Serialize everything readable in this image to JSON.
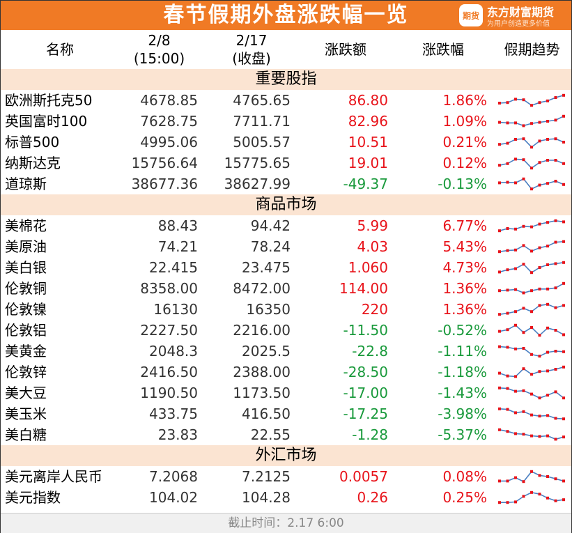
{
  "title": "春节假期外盘涨跌幅一览",
  "brand": {
    "logo_text": "期货",
    "name": "东方财富期货",
    "slogan": "为用户创造更多价值"
  },
  "header": {
    "name": "名称",
    "col1": [
      "2/8",
      "(15:00)"
    ],
    "col2": [
      "2/17",
      "(收盘)"
    ],
    "change": "涨跌额",
    "pct": "涨跌幅",
    "trend": "假期趋势"
  },
  "colors": {
    "up": "#e8141b",
    "down": "#1a9a3c",
    "accent": "#f07a25",
    "section_bg": "#fbe4d2"
  },
  "sections": [
    {
      "title": "重要股指",
      "rows": [
        {
          "name": "欧洲斯托克50",
          "v1": "4678.85",
          "v2": "4765.65",
          "change": "86.80",
          "pct": "1.86%",
          "dir": "up",
          "trend": [
            0.25,
            0.3,
            0.6,
            0.55,
            0.05,
            0.3,
            0.45,
            0.75,
            0.95
          ]
        },
        {
          "name": "英国富时100",
          "v1": "7628.75",
          "v2": "7711.71",
          "change": "82.96",
          "pct": "1.09%",
          "dir": "up",
          "trend": [
            0.4,
            0.35,
            0.35,
            0.1,
            0.3,
            0.4,
            0.5,
            0.6,
            0.95
          ]
        },
        {
          "name": "标普500",
          "v1": "4995.06",
          "v2": "5005.57",
          "change": "10.51",
          "pct": "0.21%",
          "dir": "up",
          "trend": [
            0.3,
            0.4,
            0.75,
            0.8,
            0.05,
            0.6,
            0.75,
            0.8,
            0.5
          ]
        },
        {
          "name": "纳斯达克",
          "v1": "15756.64",
          "v2": "15775.65",
          "change": "19.01",
          "pct": "0.12%",
          "dir": "up",
          "trend": [
            0.3,
            0.45,
            0.85,
            0.8,
            0.05,
            0.55,
            0.75,
            0.75,
            0.45
          ]
        },
        {
          "name": "道琼斯",
          "v1": "38677.36",
          "v2": "38627.99",
          "change": "-49.37",
          "pct": "-0.13%",
          "dir": "down",
          "trend": [
            0.6,
            0.65,
            0.6,
            0.95,
            0.05,
            0.4,
            0.55,
            0.75,
            0.45
          ]
        }
      ]
    },
    {
      "title": "商品市场",
      "rows": [
        {
          "name": "美棉花",
          "v1": "88.43",
          "v2": "94.42",
          "change": "5.99",
          "pct": "6.77%",
          "dir": "up",
          "trend": [
            0.05,
            0.25,
            0.2,
            0.45,
            0.4,
            0.65,
            0.8,
            0.95,
            0.85
          ]
        },
        {
          "name": "美原油",
          "v1": "74.21",
          "v2": "78.24",
          "change": "4.03",
          "pct": "5.43%",
          "dir": "up",
          "trend": [
            0.05,
            0.15,
            0.2,
            0.6,
            0.1,
            0.4,
            0.55,
            0.9,
            0.95
          ]
        },
        {
          "name": "美白银",
          "v1": "22.415",
          "v2": "23.475",
          "change": "1.060",
          "pct": "4.73%",
          "dir": "up",
          "trend": [
            0.1,
            0.3,
            0.4,
            0.8,
            0.05,
            0.5,
            0.75,
            0.85,
            0.95
          ]
        },
        {
          "name": "伦敦铜",
          "v1": "8358.00",
          "v2": "8472.00",
          "change": "114.00",
          "pct": "1.36%",
          "dir": "up",
          "trend": [
            0.3,
            0.35,
            0.4,
            0.1,
            0.3,
            0.45,
            0.45,
            0.55,
            0.95
          ]
        },
        {
          "name": "伦敦镍",
          "v1": "16130",
          "v2": "16350",
          "change": "220",
          "pct": "1.36%",
          "dir": "up",
          "trend": [
            0.05,
            0.15,
            0.3,
            0.6,
            0.3,
            0.85,
            0.95,
            0.65,
            0.85
          ]
        },
        {
          "name": "伦敦铝",
          "v1": "2227.50",
          "v2": "2216.00",
          "change": "-11.50",
          "pct": "-0.52%",
          "dir": "down",
          "trend": [
            0.4,
            0.55,
            0.95,
            0.3,
            0.75,
            0.05,
            0.7,
            0.5,
            0.1
          ]
        },
        {
          "name": "美黄金",
          "v1": "2048.3",
          "v2": "2025.5",
          "change": "-22.8",
          "pct": "-1.11%",
          "dir": "down",
          "trend": [
            0.9,
            0.85,
            0.7,
            0.75,
            0.2,
            0.05,
            0.4,
            0.5,
            0.45
          ]
        },
        {
          "name": "伦敦锌",
          "v1": "2416.50",
          "v2": "2388.00",
          "change": "-28.50",
          "pct": "-1.18%",
          "dir": "down",
          "trend": [
            0.4,
            0.15,
            0.1,
            0.8,
            0.3,
            0.55,
            0.6,
            0.75,
            0.95
          ]
        },
        {
          "name": "美大豆",
          "v1": "1190.50",
          "v2": "1173.50",
          "change": "-17.00",
          "pct": "-1.43%",
          "dir": "down",
          "trend": [
            0.95,
            0.9,
            0.65,
            0.7,
            0.4,
            0.05,
            0.3,
            0.6,
            0.05
          ]
        },
        {
          "name": "美玉米",
          "v1": "433.75",
          "v2": "416.50",
          "change": "-17.25",
          "pct": "-3.98%",
          "dir": "down",
          "trend": [
            0.95,
            0.9,
            0.6,
            0.7,
            0.4,
            0.3,
            0.35,
            0.1,
            0.05
          ]
        },
        {
          "name": "美白糖",
          "v1": "23.83",
          "v2": "22.55",
          "change": "-1.28",
          "pct": "-5.37%",
          "dir": "down",
          "trend": [
            0.95,
            0.8,
            0.6,
            0.55,
            0.4,
            0.35,
            0.4,
            0.1,
            0.3
          ]
        }
      ]
    },
    {
      "title": "外汇市场",
      "rows": [
        {
          "name": "美元离岸人民币",
          "v1": "7.2068",
          "v2": "7.2125",
          "change": "0.0057",
          "pct": "0.08%",
          "dir": "up",
          "trend": [
            0.1,
            0.1,
            0.4,
            0.05,
            0.95,
            0.6,
            0.5,
            0.3,
            0.1
          ]
        },
        {
          "name": "美元指数",
          "v1": "104.02",
          "v2": "104.28",
          "change": "0.26",
          "pct": "0.25%",
          "dir": "up",
          "trend": [
            0.05,
            0.05,
            0.1,
            0.6,
            0.95,
            0.8,
            0.45,
            0.2,
            0.3
          ]
        }
      ]
    }
  ],
  "footer": "截止时间：2.17 6:00"
}
